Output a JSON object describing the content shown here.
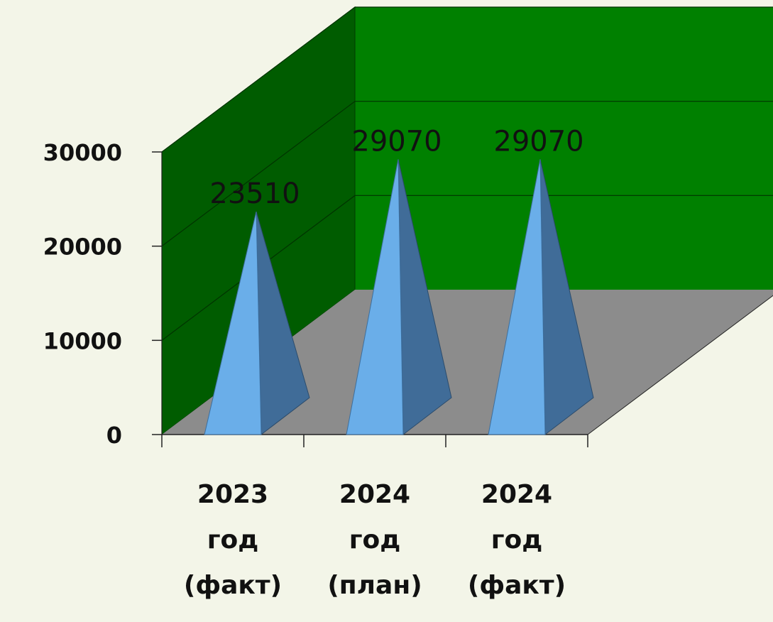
{
  "chart_data": {
    "type": "bar",
    "bar_shape": "pyramid",
    "three_d": true,
    "categories": [
      [
        "2023",
        "год",
        "(факт)"
      ],
      [
        "2024",
        "год",
        "(план)"
      ],
      [
        "2024",
        "год",
        "(факт)"
      ]
    ],
    "values": [
      23510,
      29070,
      29070
    ],
    "data_labels": [
      "23510",
      "29070",
      "29070"
    ],
    "yticks": [
      0,
      10000,
      20000,
      30000
    ],
    "ytick_labels": [
      "0",
      "10000",
      "20000",
      "30000"
    ],
    "ylim": [
      0,
      30000
    ],
    "grid": true,
    "colors": {
      "wall_back": "#008000",
      "wall_side": "#005c00",
      "floor": "#8c8c8c",
      "bar_front": "#6aaee9",
      "bar_side": "#406c98"
    }
  }
}
